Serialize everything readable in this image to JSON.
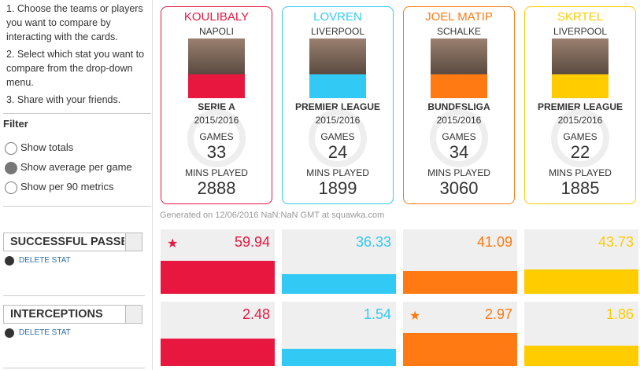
{
  "instructions": [
    "1. Choose the teams or players you want to compare by interacting with the cards.",
    "2. Select which stat you want to compare from the drop-down menu.",
    "3. Share with your friends."
  ],
  "filter": {
    "title": "Filter",
    "options": [
      "Show totals",
      "Show average per game",
      "Show per 90 metrics"
    ],
    "selected": 1
  },
  "games_label": "GAMES",
  "mins_label": "MINS PLAYED",
  "players": [
    {
      "name": "KOULIBALY",
      "team": "NAPOLI",
      "league": "SERIE A",
      "season": "2015/2016",
      "games": 33,
      "mins": 2888,
      "color": "#e8173f"
    },
    {
      "name": "LOVREN",
      "team": "LIVERPOOL",
      "league": "PREMIER LEAGUE",
      "season": "2015/2016",
      "games": 24,
      "mins": 1899,
      "color": "#33c9f5"
    },
    {
      "name": "JOEL MATIP",
      "team": "SCHALKE",
      "league": "BUNDESLIGA",
      "season": "2015/2016",
      "games": 34,
      "mins": 3060,
      "color": "#ff7a12"
    },
    {
      "name": "SKRTEL",
      "team": "LIVERPOOL",
      "league": "PREMIER LEAGUE",
      "season": "2015/2016",
      "games": 22,
      "mins": 1885,
      "color": "#ffcc00"
    }
  ],
  "generated": "Generated on 12/06/2016 NaN:NaN GMT at squawka.com",
  "delete_label": "DELETE STAT",
  "stats": [
    {
      "name": "SUCCESSFUL PASSE",
      "values": [
        59.94,
        36.33,
        41.09,
        43.73
      ],
      "best": 0
    },
    {
      "name": "INTERCEPTIONS",
      "values": [
        2.48,
        1.54,
        2.97,
        1.86
      ],
      "best": 2
    }
  ]
}
